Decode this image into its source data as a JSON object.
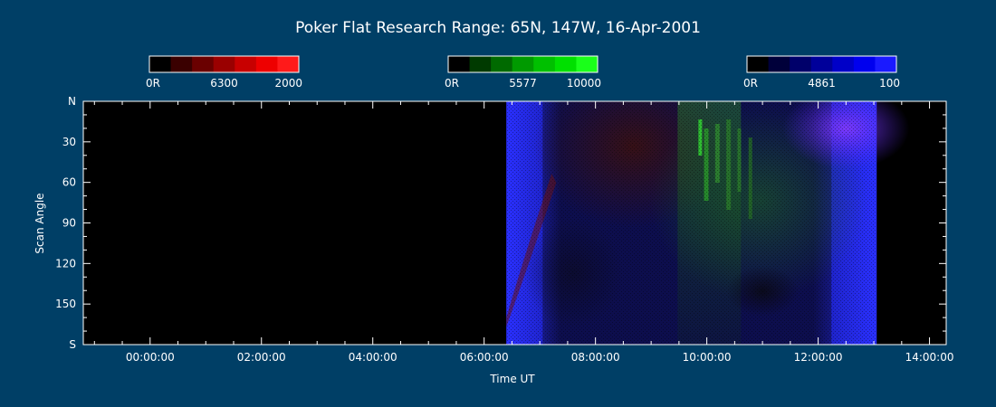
{
  "chart_data": {
    "type": "heatmap",
    "title": "Poker Flat Research Range: 65N, 147W, 16-Apr-2001",
    "xlabel": "Time UT",
    "ylabel": "Scan Angle",
    "x_range_hours": [
      -1.2,
      14.3
    ],
    "x_ticks": [
      "00:00:00",
      "02:00:00",
      "04:00:00",
      "06:00:00",
      "08:00:00",
      "10:00:00",
      "12:00:00",
      "14:00:00"
    ],
    "x_tick_hours": [
      0,
      2,
      4,
      6,
      8,
      10,
      12,
      14
    ],
    "y_range": [
      0,
      180
    ],
    "y_ticks": [
      "N",
      "30",
      "60",
      "90",
      "120",
      "150",
      "S"
    ],
    "y_tick_values": [
      0,
      30,
      60,
      90,
      120,
      150,
      180
    ],
    "data_start_hours": 6.4,
    "data_end_hours": 13.05,
    "colorbars": [
      {
        "name": "6300",
        "min_label": "0R",
        "mid_label": "6300",
        "max_label": "2000",
        "colors": [
          "#000000",
          "#3a0000",
          "#6a0000",
          "#9a0000",
          "#c80000",
          "#ee0000",
          "#ff1a1a"
        ]
      },
      {
        "name": "5577",
        "min_label": "0R",
        "mid_label": "5577",
        "max_label": "10000",
        "colors": [
          "#000000",
          "#003a00",
          "#006a00",
          "#009a00",
          "#00c000",
          "#00e000",
          "#1aff1a"
        ]
      },
      {
        "name": "4861",
        "min_label": "0R",
        "mid_label": "4861",
        "max_label": "100",
        "colors": [
          "#000000",
          "#00003a",
          "#00006a",
          "#00009a",
          "#0000c8",
          "#0000ee",
          "#1a1aff"
        ]
      }
    ]
  }
}
